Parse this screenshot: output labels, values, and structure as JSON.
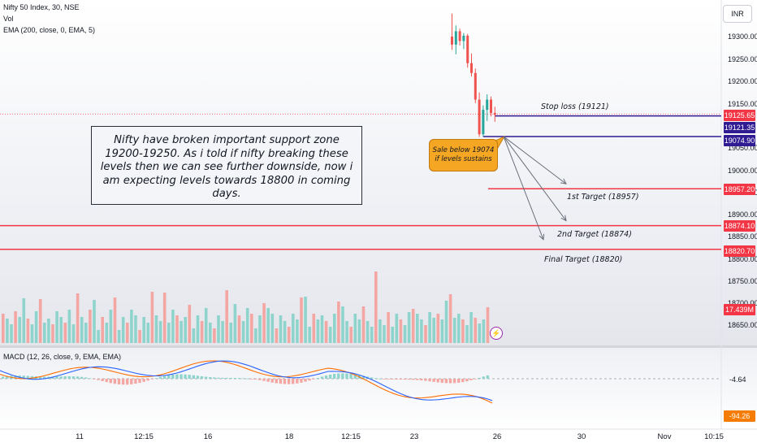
{
  "legend": {
    "symbol": "Nifty 50 Index, 30, NSE",
    "vol": "Vol",
    "ema": "EMA (200, close, 0, EMA, 5)",
    "macd": "MACD (12, 26, close, 9, EMA, EMA)"
  },
  "currency_button": "INR",
  "annotation": {
    "note": "Nifty have broken important support zone 19200-19250. As i told if nifty breaking these levels then we can see further downside, now i am expecting levels towards 18800 in coming days.",
    "callout": "Sale below 19074 if levels sustains"
  },
  "labels": {
    "stop_loss": "Stop loss (19121)",
    "target1": "1st Target (18957)",
    "target2": "2nd Target (18874)",
    "final": "Final Target (18820)"
  },
  "price_tags": [
    {
      "text": "19125.65",
      "color": "#f23645"
    },
    {
      "text": "19121.35",
      "color": "#311b92"
    },
    {
      "text": "19074.90",
      "color": "#311b92"
    },
    {
      "text": "18957.20",
      "color": "#f23645"
    },
    {
      "text": "18874.10",
      "color": "#f23645"
    },
    {
      "text": "18820.70",
      "color": "#f23645"
    },
    {
      "text": "17.439M",
      "color": "#f23645"
    },
    {
      "text": "-94.26",
      "color": "#f57c00"
    }
  ],
  "macd_value": "-4.64",
  "chart_data": {
    "type": "candlestick",
    "y_axis_ticks": [
      "19300.00",
      "19250.00",
      "19200.00",
      "19150.00",
      "19050.00",
      "19000.00",
      "18950.00",
      "18900.00",
      "18850.00",
      "18800.00",
      "18750.00",
      "18700.00",
      "18650.00"
    ],
    "x_axis_ticks": [
      "11",
      "12:15",
      "16",
      "18",
      "12:15",
      "23",
      "26",
      "30",
      "Nov",
      "10:15"
    ],
    "candles": [
      {
        "o": 19300,
        "h": 19352,
        "l": 19270,
        "c": 19282
      },
      {
        "o": 19282,
        "h": 19325,
        "l": 19260,
        "c": 19312
      },
      {
        "o": 19312,
        "h": 19318,
        "l": 19280,
        "c": 19290
      },
      {
        "o": 19290,
        "h": 19308,
        "l": 19272,
        "c": 19302
      },
      {
        "o": 19302,
        "h": 19306,
        "l": 19230,
        "c": 19240
      },
      {
        "o": 19240,
        "h": 19262,
        "l": 19210,
        "c": 19218
      },
      {
        "o": 19218,
        "h": 19228,
        "l": 19150,
        "c": 19158
      },
      {
        "o": 19158,
        "h": 19174,
        "l": 19074,
        "c": 19080
      },
      {
        "o": 19080,
        "h": 19145,
        "l": 19074,
        "c": 19135
      },
      {
        "o": 19135,
        "h": 19170,
        "l": 19110,
        "c": 19158
      },
      {
        "o": 19158,
        "h": 19165,
        "l": 19120,
        "c": 19128
      },
      {
        "o": 19128,
        "h": 19142,
        "l": 19108,
        "c": 19124
      }
    ],
    "levels": {
      "stop_loss": 19121.35,
      "entry": 19074.9,
      "last": 19125.65,
      "target1": 18957.2,
      "target2": 18874.1,
      "final_target": 18820.7
    },
    "volume_last": "17.439M",
    "macd_last": -4.64,
    "signal_last": -94.26
  },
  "colors": {
    "up": "#26a69a",
    "down": "#ef5350",
    "level_red": "#f23645",
    "level_purple": "#311b92",
    "macd_line": "#2962ff",
    "signal_line": "#ff6d00"
  }
}
